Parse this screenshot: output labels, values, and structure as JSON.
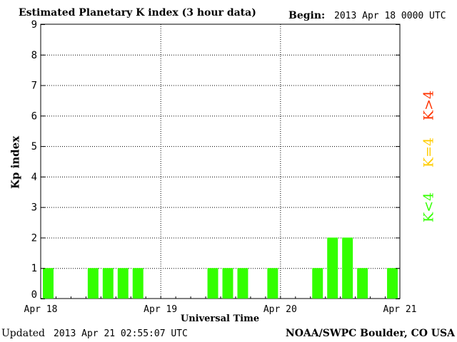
{
  "header": {
    "title": "Estimated Planetary K index (3 hour data)",
    "begin_label": "Begin:",
    "begin_value": "2013 Apr 18 0000 UTC"
  },
  "footer": {
    "updated_label": "Updated",
    "updated_value": "2013 Apr 21 02:55:07 UTC",
    "source": "NOAA/SWPC Boulder, CO USA"
  },
  "legend": {
    "high": {
      "label": "K>4",
      "color": "#ff3300"
    },
    "equal": {
      "label": "K=4",
      "color": "#ffcc00"
    },
    "low": {
      "label": "K<4",
      "color": "#33ff00"
    }
  },
  "chart_data": {
    "type": "bar",
    "title": "Estimated Planetary K index (3 hour data)",
    "xlabel": "Universal Time",
    "ylabel": "Kp index",
    "ylim": [
      0,
      9
    ],
    "yticks": [
      "0",
      "1",
      "2",
      "3",
      "4",
      "5",
      "6",
      "7",
      "8",
      "9"
    ],
    "xticks": [
      "Apr 18",
      "Apr 19",
      "Apr 20",
      "Apr 21"
    ],
    "grid": true,
    "bar_color": "#33ff00",
    "categories": [
      "Apr 18 00",
      "Apr 18 03",
      "Apr 18 06",
      "Apr 18 09",
      "Apr 18 12",
      "Apr 18 15",
      "Apr 18 18",
      "Apr 18 21",
      "Apr 19 00",
      "Apr 19 03",
      "Apr 19 06",
      "Apr 19 09",
      "Apr 19 12",
      "Apr 19 15",
      "Apr 19 18",
      "Apr 19 21",
      "Apr 20 00",
      "Apr 20 03",
      "Apr 20 06",
      "Apr 20 09",
      "Apr 20 12",
      "Apr 20 15",
      "Apr 20 18",
      "Apr 20 21"
    ],
    "values": [
      1,
      0,
      0,
      1,
      1,
      1,
      1,
      0,
      0,
      0,
      0,
      1,
      1,
      1,
      0,
      1,
      0,
      0,
      1,
      2,
      2,
      1,
      0,
      1
    ]
  }
}
